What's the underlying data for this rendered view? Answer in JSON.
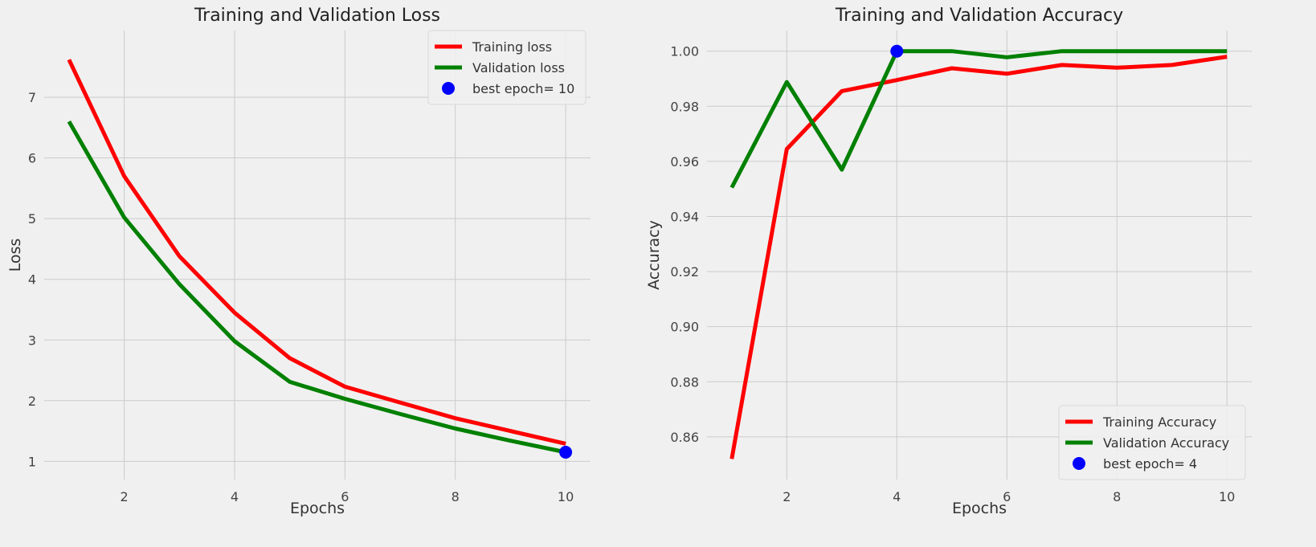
{
  "chart_data": [
    {
      "type": "line",
      "title": "Training and Validation Loss",
      "xlabel": "Epochs",
      "ylabel": "Loss",
      "xlim": [
        0.55,
        10.45
      ],
      "ylim": [
        0.7,
        8.1
      ],
      "xticks": [
        2,
        4,
        6,
        8,
        10
      ],
      "yticks": [
        1,
        2,
        3,
        4,
        5,
        6,
        7
      ],
      "grid": true,
      "legend_position": "top-right",
      "series": [
        {
          "name": "Training loss",
          "color": "#ff0000",
          "x": [
            1,
            2,
            3,
            4,
            5,
            6,
            7,
            8,
            9,
            10
          ],
          "values": [
            7.62,
            5.7,
            4.38,
            3.45,
            2.7,
            2.23,
            1.97,
            1.71,
            1.5,
            1.29
          ]
        },
        {
          "name": "Validation loss",
          "color": "#008000",
          "x": [
            1,
            2,
            3,
            4,
            5,
            6,
            7,
            8,
            9,
            10
          ],
          "values": [
            6.6,
            5.02,
            3.92,
            2.98,
            2.31,
            2.03,
            1.78,
            1.54,
            1.34,
            1.15
          ]
        }
      ],
      "best_point": {
        "label": "best epoch= 10",
        "x": 10,
        "y": 1.15,
        "color": "#0000ff"
      }
    },
    {
      "type": "line",
      "title": "Training and Validation Accuracy",
      "xlabel": "Epochs",
      "ylabel": "Accuracy",
      "xlim": [
        0.55,
        10.45
      ],
      "ylim": [
        0.8445,
        1.0075
      ],
      "xticks": [
        2,
        4,
        6,
        8,
        10
      ],
      "yticks": [
        0.86,
        0.88,
        0.9,
        0.92,
        0.94,
        0.96,
        0.98,
        1.0
      ],
      "ytick_labels": [
        "0.86",
        "0.88",
        "0.90",
        "0.92",
        "0.94",
        "0.96",
        "0.98",
        "1.00"
      ],
      "grid": true,
      "legend_position": "bottom-right",
      "series": [
        {
          "name": "Training Accuracy",
          "color": "#ff0000",
          "x": [
            1,
            2,
            3,
            4,
            5,
            6,
            7,
            8,
            9,
            10
          ],
          "values": [
            0.852,
            0.9645,
            0.9855,
            0.9895,
            0.9938,
            0.9918,
            0.995,
            0.994,
            0.995,
            0.998
          ]
        },
        {
          "name": "Validation Accuracy",
          "color": "#008000",
          "x": [
            1,
            2,
            3,
            4,
            5,
            6,
            7,
            8,
            9,
            10
          ],
          "values": [
            0.9505,
            0.9888,
            0.957,
            1.0,
            1.0,
            0.9978,
            1.0,
            1.0,
            1.0,
            1.0
          ]
        }
      ],
      "best_point": {
        "label": "best epoch= 4",
        "x": 4,
        "y": 1.0,
        "color": "#0000ff"
      }
    }
  ]
}
